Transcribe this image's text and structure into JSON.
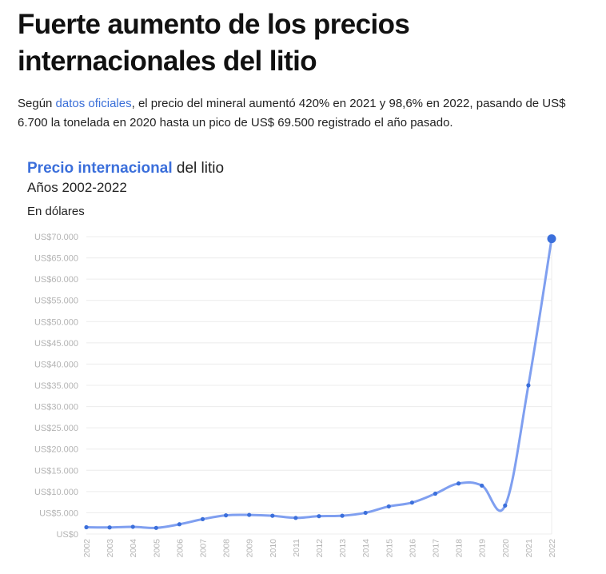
{
  "headline": "Fuerte aumento de los precios internacionales del litio",
  "lead": {
    "before": "Según ",
    "link": "datos oficiales",
    "after": ", el precio del mineral aumentó 420% en 2021 y 98,6% en 2022, pasando de US$ 6.700 la tonelada en 2020 hasta un pico de US$ 69.500 registrado el año pasado."
  },
  "colors": {
    "accent": "#3b6fdb",
    "line": "#7f9ff0",
    "grid": "#ececec",
    "tick": "#b4b4b4"
  },
  "chart_data": {
    "type": "line",
    "title_accent": "Precio internacional",
    "title_rest": " del litio",
    "subtitle": "Años 2002-2022",
    "ylabel": "En dólares",
    "ylim": [
      0,
      70000
    ],
    "yticks": [
      {
        "value": 0,
        "label": "US$0"
      },
      {
        "value": 5000,
        "label": "US$5.000"
      },
      {
        "value": 10000,
        "label": "US$10.000"
      },
      {
        "value": 15000,
        "label": "US$15.000"
      },
      {
        "value": 20000,
        "label": "US$20.000"
      },
      {
        "value": 25000,
        "label": "US$25.000"
      },
      {
        "value": 30000,
        "label": "US$30.000"
      },
      {
        "value": 35000,
        "label": "US$35.000"
      },
      {
        "value": 40000,
        "label": "US$40.000"
      },
      {
        "value": 45000,
        "label": "US$45.000"
      },
      {
        "value": 50000,
        "label": "US$50.000"
      },
      {
        "value": 55000,
        "label": "US$55.000"
      },
      {
        "value": 60000,
        "label": "US$60.000"
      },
      {
        "value": 65000,
        "label": "US$65.000"
      },
      {
        "value": 70000,
        "label": "US$70.000"
      }
    ],
    "x": [
      "2002",
      "2003",
      "2004",
      "2005",
      "2006",
      "2007",
      "2008",
      "2009",
      "2010",
      "2011",
      "2012",
      "2013",
      "2014",
      "2015",
      "2016",
      "2017",
      "2018",
      "2019",
      "2020",
      "2021",
      "2022"
    ],
    "series": [
      {
        "name": "Precio internacional del litio",
        "values": [
          1600,
          1550,
          1700,
          1450,
          2300,
          3500,
          4400,
          4500,
          4300,
          3800,
          4200,
          4300,
          5000,
          6500,
          7400,
          9500,
          11900,
          11400,
          6700,
          35000,
          69500
        ]
      }
    ]
  }
}
